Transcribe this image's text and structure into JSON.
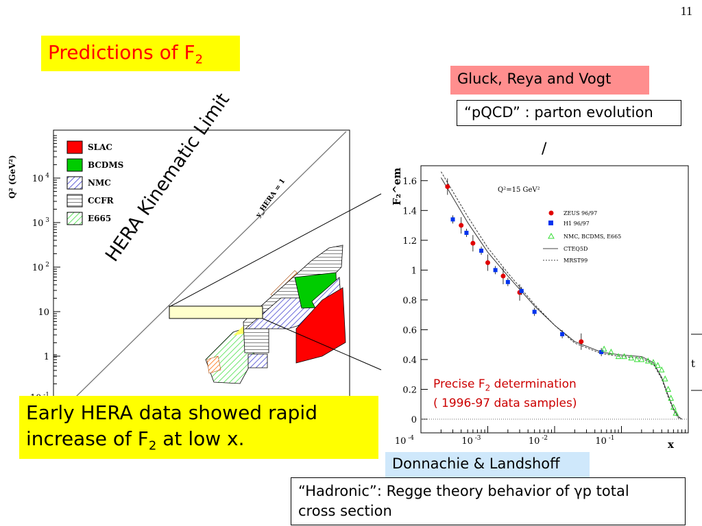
{
  "slide_number": "11",
  "title": {
    "main": "Predictions of F",
    "sub": "2"
  },
  "gluck": {
    "label": "Gluck, Reya and Vogt"
  },
  "pqcd": {
    "label": "“pQCD” : parton evolution"
  },
  "slash": "/",
  "early": {
    "line1": "Early HERA data showed rapid",
    "line2a": "increase of F",
    "line2sub": "2",
    "line2b": " at low x."
  },
  "donnachie": {
    "label": "Donnachie & Landshoff"
  },
  "hadronic": {
    "line1": "“Hadronic”: Regge theory behavior of γp total",
    "line2": "cross section"
  },
  "precise": {
    "line1a": "Precise  F",
    "line1sub": "2",
    "line1b": " determination",
    "line2": "( 1996-97 data samples)"
  },
  "hera_limit": "HERA Kinematic Limit",
  "right_edge_label": "t",
  "colors": {
    "title_bg": "#ffff00",
    "title_text": "#ff0000",
    "gluck_bg": "#ff8e8e",
    "donn_bg": "#cfe8fb",
    "slac": "#ff0000",
    "bcdms": "#00cc00",
    "nmc": "#3333cc",
    "zeus": "#e00000",
    "h1": "#0033ee",
    "nmc_tri": "#33dd33"
  },
  "chart_data": [
    {
      "type": "scatter",
      "ylabel": "Q² (GeV²)",
      "ytick_labels": [
        "10^4",
        "10^3",
        "10^2",
        "10",
        "1",
        "10^-1"
      ],
      "line_label": "y_HERA = 1",
      "legend": [
        "SLAC",
        "BCDMS",
        "NMC",
        "CCFR",
        "E665"
      ],
      "legend_placement": "top-left"
    },
    {
      "type": "scatter",
      "ylabel": "F₂^em",
      "xlabel": "x",
      "annotation": "Q²=15 GeV²",
      "xlim": [
        0.0001,
        1
      ],
      "ylim": [
        0,
        1.7
      ],
      "xtick_labels": [
        "10^-4",
        "10^-3",
        "10^-2",
        "10^-1"
      ],
      "yticks": [
        0,
        0.2,
        0.4,
        0.6,
        0.8,
        1,
        1.2,
        1.4,
        1.6
      ],
      "legend": [
        "ZEUS 96/97",
        "H1 96/97",
        "NMC, BCDMS, E665",
        "CTEQ5D",
        "MRST99"
      ],
      "legend_placement": "top-right",
      "series": [
        {
          "name": "ZEUS 96/97",
          "x": [
            0.00025,
            0.0004,
            0.0006,
            0.001,
            0.0017,
            0.003,
            0.025
          ],
          "y": [
            1.56,
            1.3,
            1.18,
            1.05,
            0.96,
            0.85,
            0.52
          ]
        },
        {
          "name": "H1 96/97",
          "x": [
            0.0003,
            0.00048,
            0.0008,
            0.0013,
            0.002,
            0.0032,
            0.005,
            0.013,
            0.05
          ],
          "y": [
            1.34,
            1.25,
            1.13,
            1.0,
            0.92,
            0.86,
            0.72,
            0.57,
            0.45
          ]
        },
        {
          "name": "NMC, BCDMS, E665",
          "x": [
            0.055,
            0.07,
            0.09,
            0.11,
            0.14,
            0.17,
            0.2,
            0.25,
            0.3,
            0.35,
            0.4,
            0.45,
            0.5,
            0.55,
            0.6,
            0.65
          ],
          "y": [
            0.47,
            0.45,
            0.42,
            0.42,
            0.41,
            0.4,
            0.4,
            0.39,
            0.38,
            0.36,
            0.33,
            0.27,
            0.2,
            0.14,
            0.08,
            0.04
          ]
        },
        {
          "name": "CTEQ5D",
          "x": [
            0.0002,
            0.0005,
            0.001,
            0.002,
            0.005,
            0.01,
            0.02,
            0.05,
            0.1,
            0.2,
            0.3,
            0.4,
            0.5,
            0.6,
            0.7,
            0.8
          ],
          "y": [
            1.62,
            1.32,
            1.12,
            0.96,
            0.76,
            0.63,
            0.52,
            0.45,
            0.43,
            0.42,
            0.38,
            0.28,
            0.16,
            0.07,
            0.02,
            0.0
          ]
        },
        {
          "name": "MRST99",
          "x": [
            0.0002,
            0.0005,
            0.001,
            0.002,
            0.005,
            0.01,
            0.02,
            0.05,
            0.1,
            0.2,
            0.3,
            0.4,
            0.5,
            0.6,
            0.7,
            0.8
          ],
          "y": [
            1.66,
            1.36,
            1.15,
            0.98,
            0.77,
            0.63,
            0.51,
            0.44,
            0.42,
            0.41,
            0.37,
            0.27,
            0.15,
            0.06,
            0.01,
            0.0
          ]
        }
      ]
    }
  ]
}
